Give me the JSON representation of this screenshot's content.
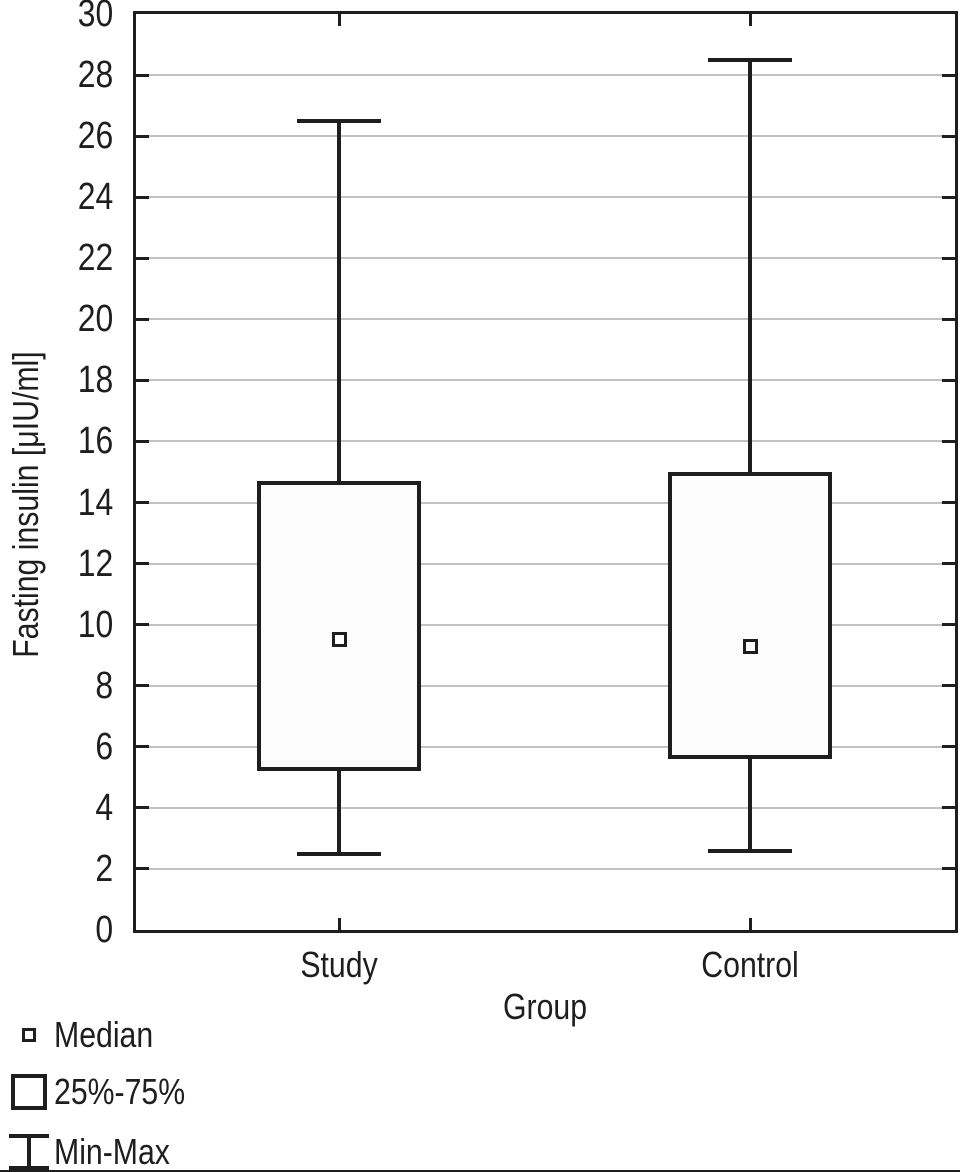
{
  "chart_data": {
    "type": "boxplot",
    "xlabel": "Group",
    "ylabel": "Fasting insulin [μIU/ml]",
    "ylim": [
      0,
      30
    ],
    "yticks": [
      0,
      2,
      4,
      6,
      8,
      10,
      12,
      14,
      16,
      18,
      20,
      22,
      24,
      26,
      28,
      30
    ],
    "grid": "horizontal",
    "categories": [
      "Study",
      "Control"
    ],
    "series": [
      {
        "name": "Study",
        "min": 2.5,
        "q1": 5.2,
        "median": 9.5,
        "q3": 14.7,
        "max": 26.5
      },
      {
        "name": "Control",
        "min": 2.6,
        "q1": 5.6,
        "median": 9.3,
        "q3": 15.0,
        "max": 28.5
      }
    ],
    "legend": [
      {
        "marker": "median-square-icon",
        "label": "Median"
      },
      {
        "marker": "box-icon",
        "label": "25%-75%"
      },
      {
        "marker": "whisker-icon",
        "label": "Min-Max"
      }
    ],
    "legend_position": "bottom-left",
    "colors": {
      "line": "#1e1e1e",
      "grid": "#c2c2c2",
      "box_fill": "#fcfcfc",
      "marker_fill": "#ffffff",
      "background": "#ffffff"
    }
  }
}
